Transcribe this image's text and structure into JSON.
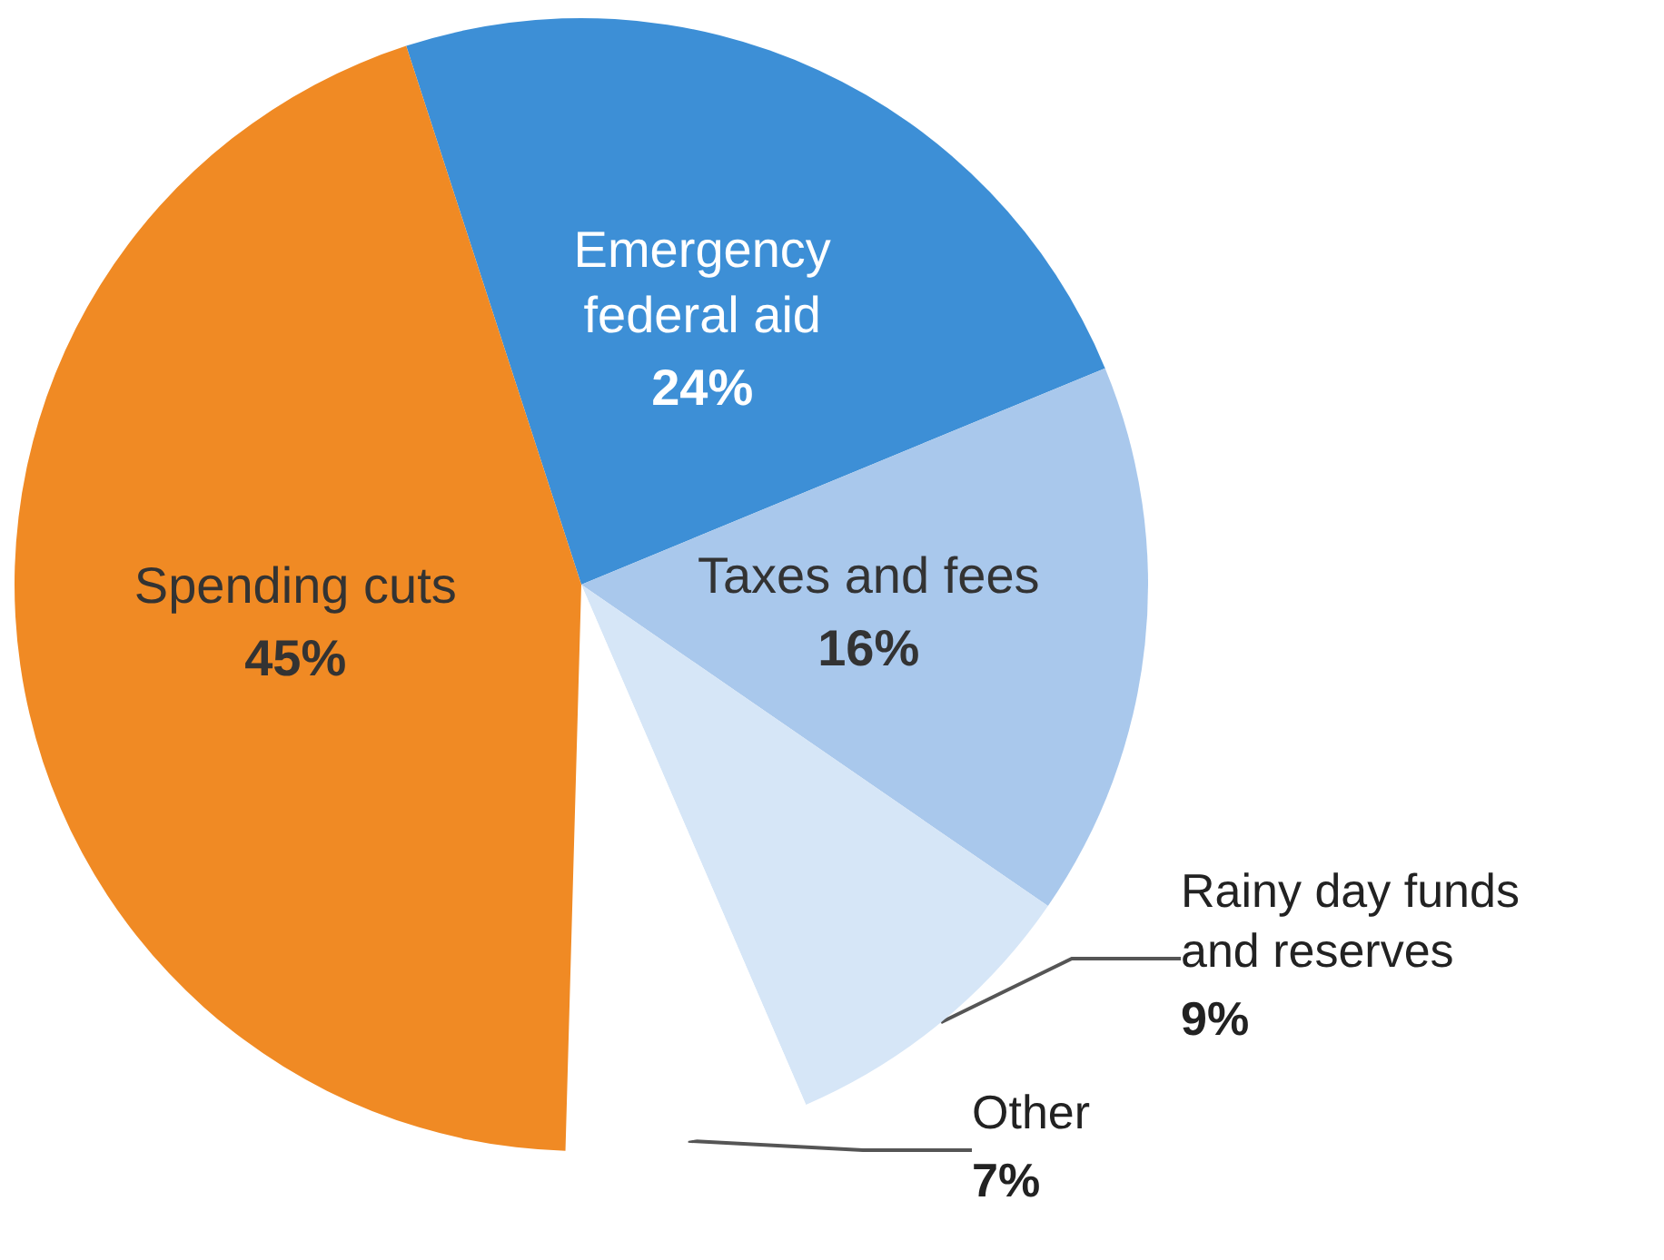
{
  "chart_data": {
    "type": "pie",
    "categories": [
      "Emergency federal aid",
      "Taxes and fees",
      "Rainy day funds and reserves",
      "Other",
      "Spending cuts"
    ],
    "values": [
      24,
      16,
      9,
      7,
      45
    ],
    "value_labels": [
      "24%",
      "16%",
      "9%",
      "7%",
      "45%"
    ],
    "colors": [
      "#3d8fd6",
      "#a9c8ec",
      "#d6e6f7",
      "#ffffff",
      "#f08a24"
    ]
  }
}
